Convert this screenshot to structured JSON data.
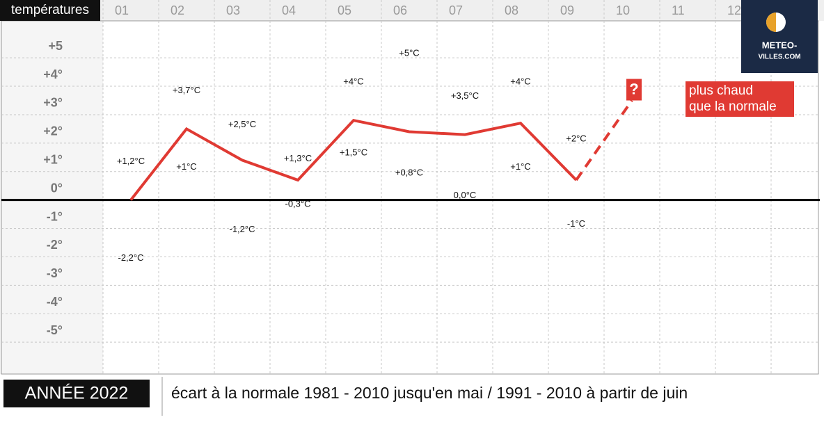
{
  "chart_data": {
    "type": "line",
    "ylabel": "températures",
    "categories": [
      "01",
      "02",
      "03",
      "04",
      "05",
      "06",
      "07",
      "08",
      "09",
      "10",
      "11",
      "12"
    ],
    "values": [
      0,
      2.5,
      1.4,
      0.7,
      2.8,
      2.4,
      2.3,
      2.7,
      0.7,
      null,
      null,
      null
    ],
    "color": "#e03a33",
    "forecast": {
      "values": [
        null,
        null,
        null,
        null,
        null,
        null,
        null,
        null,
        null,
        3.5,
        null,
        null
      ],
      "label": "?"
    },
    "highs": {
      "values": [
        1.2,
        3.7,
        2.5,
        1.3,
        4,
        5,
        3.5,
        4,
        2,
        null,
        null,
        null
      ],
      "value_labels": [
        "+1,2°C",
        "+3,7°C",
        "+2,5°C",
        "+1,3°C",
        "+4°C",
        "+5°C",
        "+3,5°C",
        "+4°C",
        "+2°C",
        null,
        null,
        null
      ]
    },
    "lows": {
      "values": [
        -2.2,
        1,
        -1.2,
        -0.3,
        1.5,
        0.8,
        0,
        1,
        -1,
        null,
        null,
        null
      ],
      "value_labels": [
        "-2,2°C",
        "+1°C",
        "-1,2°C",
        "-0,3°C",
        "+1,5°C",
        "+0,8°C",
        "0,0°C",
        "+1°C",
        "-1°C",
        null,
        null,
        null
      ]
    },
    "ylim": [
      -6,
      6.3
    ],
    "yticks": [
      {
        "value": 5,
        "label": "+5"
      },
      {
        "value": 4,
        "label": "+4°"
      },
      {
        "value": 3,
        "label": "+3°"
      },
      {
        "value": 2,
        "label": "+2°"
      },
      {
        "value": 1,
        "label": "+1°"
      },
      {
        "value": 0,
        "label": "0°"
      },
      {
        "value": -1,
        "label": "-1°"
      },
      {
        "value": -2,
        "label": "-2°"
      },
      {
        "value": -3,
        "label": "-3°"
      },
      {
        "value": -4,
        "label": "-4°"
      },
      {
        "value": -5,
        "label": "-5°"
      }
    ],
    "grid": true,
    "note": [
      "plus chaud",
      "que la normale"
    ]
  },
  "logo": {
    "lines": [
      "METEO-",
      "VILLES.COM"
    ]
  },
  "footer": {
    "year": "ANNÉE 2022",
    "caption": "écart à la normale 1981 - 2010  jusqu'en mai / 1991 - 2010 à partir de juin"
  }
}
